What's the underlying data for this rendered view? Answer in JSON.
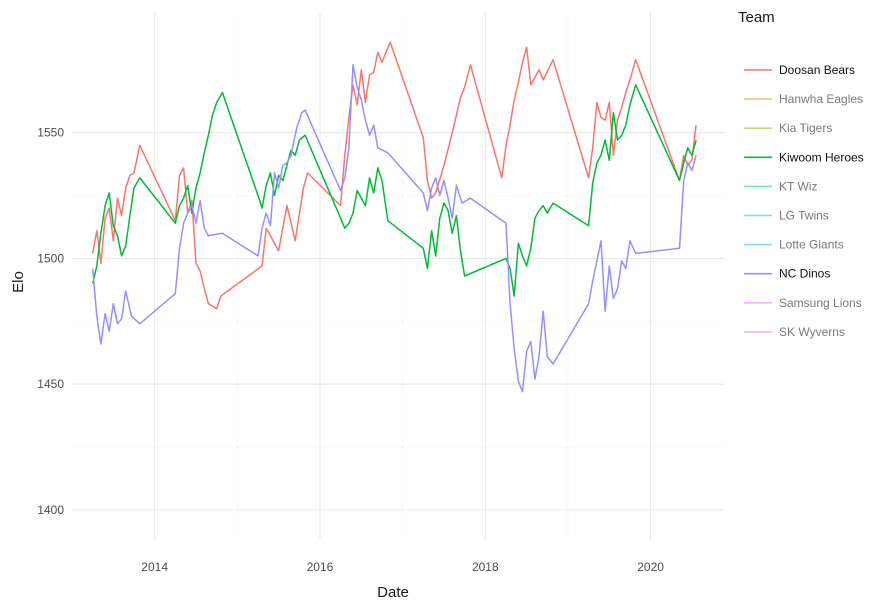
{
  "chart_data": {
    "type": "line",
    "title": "",
    "xlabel": "Date",
    "ylabel": "Elo",
    "legend_title": "Team",
    "legend_position": "right",
    "grid": true,
    "xlim": [
      2013.0,
      2020.9
    ],
    "ylim": [
      1388,
      1598
    ],
    "x_ticks": [
      2014,
      2016,
      2018,
      2020
    ],
    "x_tick_labels": [
      "2014",
      "2016",
      "2018",
      "2020"
    ],
    "y_ticks": [
      1400,
      1450,
      1500,
      1550
    ],
    "y_tick_labels": [
      "1400",
      "1450",
      "1500",
      "1550"
    ],
    "legend": [
      {
        "name": "Doosan Bears",
        "color": "#F8766D",
        "highlighted": true
      },
      {
        "name": "Hanwha Eagles",
        "color": "#D89000",
        "highlighted": false
      },
      {
        "name": "Kia Tigers",
        "color": "#A3A500",
        "highlighted": false
      },
      {
        "name": "Kiwoom Heroes",
        "color": "#00BA38",
        "highlighted": true
      },
      {
        "name": "KT Wiz",
        "color": "#00BF7D",
        "highlighted": false
      },
      {
        "name": "LG Twins",
        "color": "#00BFC4",
        "highlighted": false
      },
      {
        "name": "Lotte Giants",
        "color": "#00B0F6",
        "highlighted": false
      },
      {
        "name": "NC Dinos",
        "color": "#9590FF",
        "highlighted": true
      },
      {
        "name": "Samsung Lions",
        "color": "#E76BF3",
        "highlighted": false
      },
      {
        "name": "SK Wyverns",
        "color": "#FF62BC",
        "highlighted": false
      }
    ],
    "series": [
      {
        "name": "Doosan Bears",
        "color": "#F8766D",
        "x": [
          2013.25,
          2013.3,
          2013.35,
          2013.4,
          2013.45,
          2013.5,
          2013.55,
          2013.6,
          2013.65,
          2013.7,
          2013.75,
          2013.82,
          2014.25,
          2014.3,
          2014.35,
          2014.4,
          2014.45,
          2014.5,
          2014.55,
          2014.6,
          2014.65,
          2014.7,
          2014.75,
          2014.8,
          2015.3,
          2015.35,
          2015.4,
          2015.5,
          2015.6,
          2015.7,
          2015.8,
          2015.85,
          2016.25,
          2016.3,
          2016.35,
          2016.4,
          2016.45,
          2016.5,
          2016.55,
          2016.6,
          2016.65,
          2016.7,
          2016.75,
          2016.85,
          2017.25,
          2017.3,
          2017.35,
          2017.4,
          2017.5,
          2017.6,
          2017.65,
          2017.7,
          2017.75,
          2017.82,
          2018.2,
          2018.25,
          2018.3,
          2018.35,
          2018.4,
          2018.45,
          2018.5,
          2018.55,
          2018.6,
          2018.65,
          2018.7,
          2018.82,
          2019.25,
          2019.3,
          2019.35,
          2019.4,
          2019.45,
          2019.5,
          2019.55,
          2019.6,
          2019.65,
          2019.7,
          2019.75,
          2019.82,
          2020.35,
          2020.4,
          2020.45,
          2020.5,
          2020.55
        ],
        "y": [
          1502,
          1511,
          1498,
          1516,
          1520,
          1507,
          1524,
          1517,
          1528,
          1533,
          1534,
          1545,
          1515,
          1533,
          1536,
          1518,
          1523,
          1498,
          1495,
          1488,
          1482,
          1481,
          1480,
          1485,
          1497,
          1512,
          1509,
          1503,
          1521,
          1507,
          1528,
          1534,
          1521,
          1541,
          1556,
          1569,
          1561,
          1575,
          1562,
          1573,
          1574,
          1582,
          1578,
          1586,
          1548,
          1531,
          1524,
          1526,
          1537,
          1550,
          1557,
          1564,
          1568,
          1577,
          1532,
          1545,
          1553,
          1563,
          1570,
          1578,
          1584,
          1569,
          1572,
          1575,
          1571,
          1579,
          1532,
          1544,
          1562,
          1556,
          1555,
          1562,
          1541,
          1555,
          1560,
          1566,
          1571,
          1579,
          1531,
          1541,
          1537,
          1539,
          1553
        ]
      },
      {
        "name": "Kiwoom Heroes",
        "color": "#00BA38",
        "x": [
          2013.25,
          2013.3,
          2013.35,
          2013.4,
          2013.45,
          2013.5,
          2013.55,
          2013.6,
          2013.65,
          2013.7,
          2013.75,
          2013.82,
          2014.25,
          2014.3,
          2014.35,
          2014.4,
          2014.45,
          2014.5,
          2014.55,
          2014.6,
          2014.65,
          2014.7,
          2014.75,
          2014.82,
          2015.25,
          2015.3,
          2015.35,
          2015.4,
          2015.45,
          2015.5,
          2015.55,
          2015.6,
          2015.65,
          2015.7,
          2015.75,
          2015.82,
          2016.25,
          2016.3,
          2016.35,
          2016.4,
          2016.45,
          2016.5,
          2016.55,
          2016.6,
          2016.65,
          2016.7,
          2016.75,
          2016.82,
          2017.25,
          2017.3,
          2017.35,
          2017.4,
          2017.45,
          2017.5,
          2017.55,
          2017.6,
          2017.65,
          2017.7,
          2017.75,
          2018.25,
          2018.3,
          2018.35,
          2018.4,
          2018.45,
          2018.5,
          2018.55,
          2018.6,
          2018.65,
          2018.7,
          2018.75,
          2018.82,
          2019.25,
          2019.3,
          2019.35,
          2019.4,
          2019.45,
          2019.5,
          2019.55,
          2019.6,
          2019.65,
          2019.7,
          2019.75,
          2019.82,
          2020.35,
          2020.4,
          2020.45,
          2020.5,
          2020.55
        ],
        "y": [
          1490,
          1497,
          1510,
          1521,
          1526,
          1513,
          1509,
          1501,
          1505,
          1517,
          1528,
          1532,
          1514,
          1521,
          1524,
          1529,
          1518,
          1528,
          1534,
          1542,
          1549,
          1557,
          1562,
          1566,
          1525,
          1520,
          1529,
          1534,
          1525,
          1533,
          1531,
          1537,
          1543,
          1541,
          1547,
          1549,
          1516,
          1512,
          1514,
          1518,
          1527,
          1524,
          1521,
          1532,
          1526,
          1536,
          1531,
          1515,
          1504,
          1496,
          1511,
          1501,
          1516,
          1522,
          1519,
          1510,
          1517,
          1503,
          1493,
          1500,
          1496,
          1485,
          1506,
          1501,
          1497,
          1504,
          1516,
          1519,
          1521,
          1518,
          1522,
          1513,
          1530,
          1538,
          1541,
          1547,
          1539,
          1558,
          1547,
          1549,
          1553,
          1561,
          1569,
          1531,
          1538,
          1544,
          1541,
          1547
        ]
      },
      {
        "name": "NC Dinos",
        "color": "#9590FF",
        "x": [
          2013.25,
          2013.3,
          2013.35,
          2013.4,
          2013.45,
          2013.5,
          2013.55,
          2013.6,
          2013.65,
          2013.72,
          2013.82,
          2014.25,
          2014.3,
          2014.35,
          2014.4,
          2014.45,
          2014.5,
          2014.55,
          2014.6,
          2014.65,
          2014.82,
          2015.25,
          2015.3,
          2015.35,
          2015.4,
          2015.45,
          2015.5,
          2015.55,
          2015.6,
          2015.65,
          2015.72,
          2015.78,
          2015.82,
          2016.25,
          2016.3,
          2016.35,
          2016.4,
          2016.45,
          2016.5,
          2016.55,
          2016.6,
          2016.65,
          2016.7,
          2016.82,
          2017.25,
          2017.3,
          2017.35,
          2017.4,
          2017.45,
          2017.5,
          2017.55,
          2017.6,
          2017.65,
          2017.72,
          2017.82,
          2018.25,
          2018.3,
          2018.35,
          2018.4,
          2018.45,
          2018.5,
          2018.55,
          2018.6,
          2018.65,
          2018.7,
          2018.75,
          2018.82,
          2019.25,
          2019.3,
          2019.35,
          2019.4,
          2019.45,
          2019.5,
          2019.55,
          2019.6,
          2019.65,
          2019.7,
          2019.75,
          2019.82,
          2020.35,
          2020.4,
          2020.45,
          2020.5,
          2020.55
        ],
        "y": [
          1496,
          1477,
          1466,
          1478,
          1471,
          1482,
          1474,
          1476,
          1487,
          1477,
          1474,
          1486,
          1504,
          1514,
          1518,
          1521,
          1514,
          1523,
          1512,
          1509,
          1510,
          1501,
          1512,
          1518,
          1513,
          1534,
          1528,
          1537,
          1538,
          1541,
          1552,
          1558,
          1559,
          1527,
          1532,
          1544,
          1577,
          1568,
          1563,
          1555,
          1549,
          1553,
          1544,
          1542,
          1526,
          1519,
          1528,
          1532,
          1525,
          1531,
          1524,
          1516,
          1529,
          1522,
          1524,
          1514,
          1482,
          1464,
          1451,
          1447,
          1463,
          1467,
          1452,
          1461,
          1479,
          1461,
          1458,
          1482,
          1491,
          1499,
          1507,
          1479,
          1497,
          1484,
          1488,
          1499,
          1496,
          1507,
          1502,
          1504,
          1531,
          1538,
          1535,
          1541
        ]
      }
    ]
  }
}
